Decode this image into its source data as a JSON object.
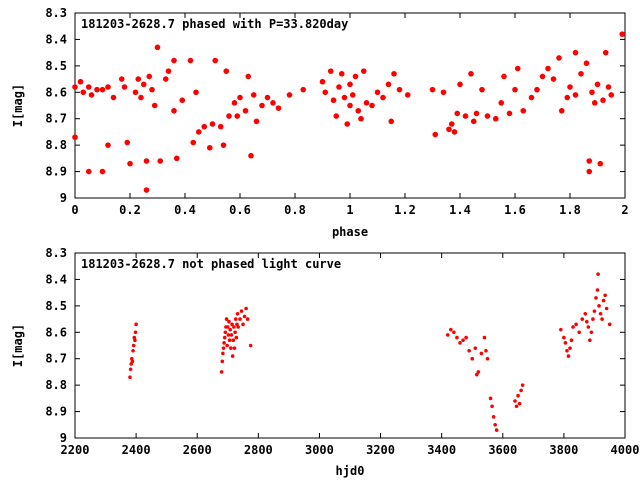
{
  "colors": {
    "points": "#ff0000",
    "axes": "#000000",
    "background": "#ffffff"
  },
  "chart_data": [
    {
      "type": "scatter",
      "title": "181203-2628.7 phased with P=33.820day",
      "xlabel": "phase",
      "ylabel": "I[mag]",
      "xlim": [
        0,
        2
      ],
      "ylim": [
        8.3,
        9
      ],
      "y_inverted": true,
      "xticks": [
        "0",
        "0.2",
        "0.4",
        "0.6",
        "0.8",
        "1",
        "1.2",
        "1.4",
        "1.6",
        "1.8",
        "2"
      ],
      "yticks": [
        "8.3",
        "8.4",
        "8.5",
        "8.6",
        "8.7",
        "8.8",
        "8.9",
        "9"
      ],
      "grid": false,
      "legend": "none",
      "series": [
        {
          "marker": "filled-circle",
          "points": [
            [
              0.0,
              8.58
            ],
            [
              0.0,
              8.77
            ],
            [
              0.02,
              8.56
            ],
            [
              0.03,
              8.6
            ],
            [
              0.05,
              8.58
            ],
            [
              0.05,
              8.9
            ],
            [
              0.06,
              8.61
            ],
            [
              0.08,
              8.59
            ],
            [
              0.1,
              8.59
            ],
            [
              0.1,
              8.9
            ],
            [
              0.12,
              8.58
            ],
            [
              0.12,
              8.8
            ],
            [
              0.14,
              8.62
            ],
            [
              0.17,
              8.55
            ],
            [
              0.18,
              8.58
            ],
            [
              0.19,
              8.79
            ],
            [
              0.2,
              8.87
            ],
            [
              0.22,
              8.6
            ],
            [
              0.23,
              8.55
            ],
            [
              0.24,
              8.62
            ],
            [
              0.25,
              8.57
            ],
            [
              0.26,
              8.97
            ],
            [
              0.26,
              8.86
            ],
            [
              0.27,
              8.54
            ],
            [
              0.28,
              8.59
            ],
            [
              0.29,
              8.65
            ],
            [
              0.3,
              8.43
            ],
            [
              0.31,
              8.86
            ],
            [
              0.33,
              8.55
            ],
            [
              0.34,
              8.52
            ],
            [
              0.36,
              8.48
            ],
            [
              0.36,
              8.67
            ],
            [
              0.37,
              8.85
            ],
            [
              0.39,
              8.63
            ],
            [
              0.42,
              8.48
            ],
            [
              0.43,
              8.79
            ],
            [
              0.44,
              8.6
            ],
            [
              0.45,
              8.75
            ],
            [
              0.47,
              8.73
            ],
            [
              0.49,
              8.81
            ],
            [
              0.5,
              8.72
            ],
            [
              0.51,
              8.48
            ],
            [
              0.53,
              8.73
            ],
            [
              0.54,
              8.8
            ],
            [
              0.55,
              8.52
            ],
            [
              0.56,
              8.69
            ],
            [
              0.58,
              8.64
            ],
            [
              0.59,
              8.69
            ],
            [
              0.6,
              8.62
            ],
            [
              0.62,
              8.67
            ],
            [
              0.63,
              8.54
            ],
            [
              0.64,
              8.84
            ],
            [
              0.65,
              8.61
            ],
            [
              0.66,
              8.71
            ],
            [
              0.68,
              8.65
            ],
            [
              0.7,
              8.62
            ],
            [
              0.72,
              8.64
            ],
            [
              0.74,
              8.66
            ],
            [
              0.78,
              8.61
            ],
            [
              0.83,
              8.59
            ],
            [
              0.9,
              8.56
            ],
            [
              0.91,
              8.6
            ],
            [
              0.93,
              8.52
            ],
            [
              0.94,
              8.63
            ],
            [
              0.95,
              8.69
            ],
            [
              0.96,
              8.58
            ],
            [
              0.97,
              8.53
            ],
            [
              0.98,
              8.62
            ],
            [
              0.99,
              8.72
            ],
            [
              1.0,
              8.57
            ],
            [
              1.0,
              8.65
            ],
            [
              1.01,
              8.61
            ],
            [
              1.02,
              8.54
            ],
            [
              1.03,
              8.67
            ],
            [
              1.04,
              8.7
            ],
            [
              1.05,
              8.52
            ],
            [
              1.06,
              8.64
            ],
            [
              1.08,
              8.65
            ],
            [
              1.1,
              8.6
            ],
            [
              1.12,
              8.62
            ],
            [
              1.14,
              8.57
            ],
            [
              1.15,
              8.71
            ],
            [
              1.16,
              8.53
            ],
            [
              1.18,
              8.59
            ],
            [
              1.21,
              8.61
            ],
            [
              1.3,
              8.59
            ],
            [
              1.31,
              8.76
            ],
            [
              1.34,
              8.6
            ],
            [
              1.36,
              8.74
            ],
            [
              1.37,
              8.72
            ],
            [
              1.38,
              8.75
            ],
            [
              1.39,
              8.68
            ],
            [
              1.4,
              8.57
            ],
            [
              1.42,
              8.69
            ],
            [
              1.44,
              8.53
            ],
            [
              1.45,
              8.71
            ],
            [
              1.46,
              8.68
            ],
            [
              1.48,
              8.59
            ],
            [
              1.5,
              8.69
            ],
            [
              1.53,
              8.7
            ],
            [
              1.55,
              8.64
            ],
            [
              1.56,
              8.54
            ],
            [
              1.58,
              8.68
            ],
            [
              1.6,
              8.59
            ],
            [
              1.61,
              8.51
            ],
            [
              1.63,
              8.67
            ],
            [
              1.66,
              8.62
            ],
            [
              1.68,
              8.59
            ],
            [
              1.7,
              8.54
            ],
            [
              1.72,
              8.51
            ],
            [
              1.74,
              8.55
            ],
            [
              1.76,
              8.47
            ],
            [
              1.77,
              8.67
            ],
            [
              1.79,
              8.62
            ],
            [
              1.8,
              8.58
            ],
            [
              1.82,
              8.45
            ],
            [
              1.82,
              8.61
            ],
            [
              1.84,
              8.53
            ],
            [
              1.86,
              8.49
            ],
            [
              1.87,
              8.86
            ],
            [
              1.87,
              8.9
            ],
            [
              1.88,
              8.6
            ],
            [
              1.89,
              8.64
            ],
            [
              1.9,
              8.57
            ],
            [
              1.91,
              8.87
            ],
            [
              1.92,
              8.63
            ],
            [
              1.93,
              8.45
            ],
            [
              1.94,
              8.58
            ],
            [
              1.95,
              8.61
            ],
            [
              1.99,
              8.38
            ]
          ]
        }
      ]
    },
    {
      "type": "scatter",
      "title": "181203-2628.7 not phased light curve",
      "xlabel": "hjd0",
      "ylabel": "I[mag]",
      "xlim": [
        2200,
        4000
      ],
      "ylim": [
        8.3,
        9
      ],
      "y_inverted": true,
      "xticks": [
        "2200",
        "2400",
        "2600",
        "2800",
        "3000",
        "3200",
        "3400",
        "3600",
        "3800",
        "4000"
      ],
      "yticks": [
        "8.3",
        "8.4",
        "8.5",
        "8.6",
        "8.7",
        "8.8",
        "8.9",
        "9"
      ],
      "grid": false,
      "legend": "none",
      "series": [
        {
          "marker": "small-dot",
          "points": [
            [
              2380,
              8.77
            ],
            [
              2382,
              8.74
            ],
            [
              2384,
              8.72
            ],
            [
              2386,
              8.7
            ],
            [
              2388,
              8.71
            ],
            [
              2390,
              8.67
            ],
            [
              2392,
              8.65
            ],
            [
              2394,
              8.62
            ],
            [
              2396,
              8.63
            ],
            [
              2398,
              8.6
            ],
            [
              2400,
              8.57
            ],
            [
              2680,
              8.75
            ],
            [
              2682,
              8.71
            ],
            [
              2684,
              8.68
            ],
            [
              2686,
              8.66
            ],
            [
              2688,
              8.64
            ],
            [
              2690,
              8.62
            ],
            [
              2692,
              8.6
            ],
            [
              2694,
              8.58
            ],
            [
              2696,
              8.55
            ],
            [
              2698,
              8.65
            ],
            [
              2700,
              8.58
            ],
            [
              2702,
              8.61
            ],
            [
              2704,
              8.56
            ],
            [
              2706,
              8.63
            ],
            [
              2708,
              8.59
            ],
            [
              2710,
              8.66
            ],
            [
              2712,
              8.61
            ],
            [
              2714,
              8.57
            ],
            [
              2716,
              8.69
            ],
            [
              2718,
              8.63
            ],
            [
              2720,
              8.58
            ],
            [
              2722,
              8.66
            ],
            [
              2724,
              8.6
            ],
            [
              2726,
              8.55
            ],
            [
              2728,
              8.62
            ],
            [
              2730,
              8.57
            ],
            [
              2732,
              8.53
            ],
            [
              2734,
              8.58
            ],
            [
              2740,
              8.55
            ],
            [
              2745,
              8.52
            ],
            [
              2750,
              8.57
            ],
            [
              2755,
              8.54
            ],
            [
              2760,
              8.51
            ],
            [
              2765,
              8.55
            ],
            [
              2775,
              8.65
            ],
            [
              3420,
              8.61
            ],
            [
              3430,
              8.59
            ],
            [
              3440,
              8.6
            ],
            [
              3450,
              8.62
            ],
            [
              3460,
              8.64
            ],
            [
              3470,
              8.63
            ],
            [
              3480,
              8.62
            ],
            [
              3490,
              8.67
            ],
            [
              3500,
              8.7
            ],
            [
              3510,
              8.66
            ],
            [
              3515,
              8.76
            ],
            [
              3520,
              8.75
            ],
            [
              3530,
              8.68
            ],
            [
              3540,
              8.62
            ],
            [
              3545,
              8.67
            ],
            [
              3550,
              8.7
            ],
            [
              3560,
              8.85
            ],
            [
              3565,
              8.88
            ],
            [
              3570,
              8.92
            ],
            [
              3575,
              8.95
            ],
            [
              3580,
              8.97
            ],
            [
              3640,
              8.86
            ],
            [
              3645,
              8.88
            ],
            [
              3650,
              8.84
            ],
            [
              3655,
              8.87
            ],
            [
              3660,
              8.82
            ],
            [
              3665,
              8.8
            ],
            [
              3790,
              8.59
            ],
            [
              3800,
              8.62
            ],
            [
              3805,
              8.64
            ],
            [
              3810,
              8.67
            ],
            [
              3815,
              8.69
            ],
            [
              3820,
              8.66
            ],
            [
              3825,
              8.63
            ],
            [
              3830,
              8.58
            ],
            [
              3840,
              8.57
            ],
            [
              3850,
              8.6
            ],
            [
              3860,
              8.55
            ],
            [
              3870,
              8.53
            ],
            [
              3875,
              8.56
            ],
            [
              3880,
              8.58
            ],
            [
              3885,
              8.63
            ],
            [
              3890,
              8.6
            ],
            [
              3895,
              8.55
            ],
            [
              3900,
              8.52
            ],
            [
              3905,
              8.47
            ],
            [
              3910,
              8.44
            ],
            [
              3915,
              8.5
            ],
            [
              3920,
              8.53
            ],
            [
              3925,
              8.55
            ],
            [
              3930,
              8.48
            ],
            [
              3935,
              8.46
            ],
            [
              3940,
              8.51
            ],
            [
              3950,
              8.57
            ],
            [
              3912,
              8.38
            ]
          ]
        }
      ]
    }
  ]
}
